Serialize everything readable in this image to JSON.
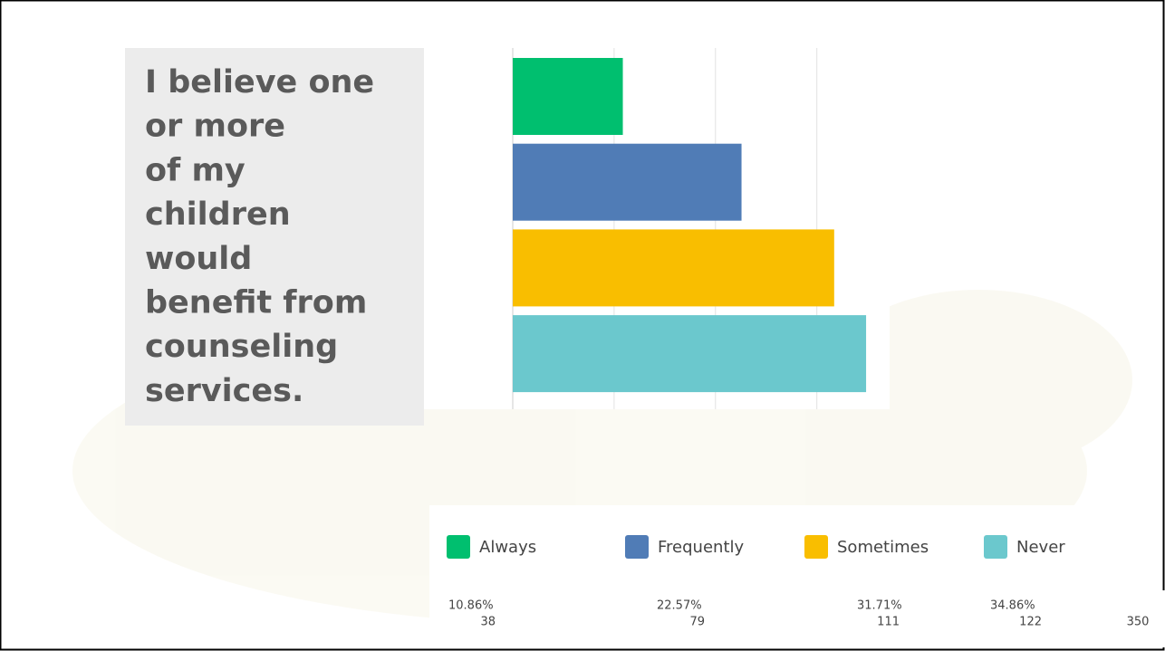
{
  "chart_data": {
    "type": "bar",
    "orientation": "horizontal",
    "question_lines": [
      "I believe one",
      "or more",
      "of my",
      "children",
      "would",
      "benefit from",
      "counseling",
      "services."
    ],
    "categories": [
      "Always",
      "Frequently",
      "Sometimes",
      "Never"
    ],
    "values": [
      10.86,
      22.57,
      31.71,
      34.86
    ],
    "value_labels": [
      "10.86%",
      "22.57%",
      "31.71%",
      "34.86%"
    ],
    "counts": [
      38,
      79,
      111,
      122
    ],
    "total": 350,
    "colors": [
      "#00bf6f",
      "#507cb6",
      "#f9be00",
      "#6bc8cd"
    ],
    "xlim": [
      0,
      37
    ],
    "gridlines": [
      10,
      20,
      30
    ],
    "grid": true
  }
}
